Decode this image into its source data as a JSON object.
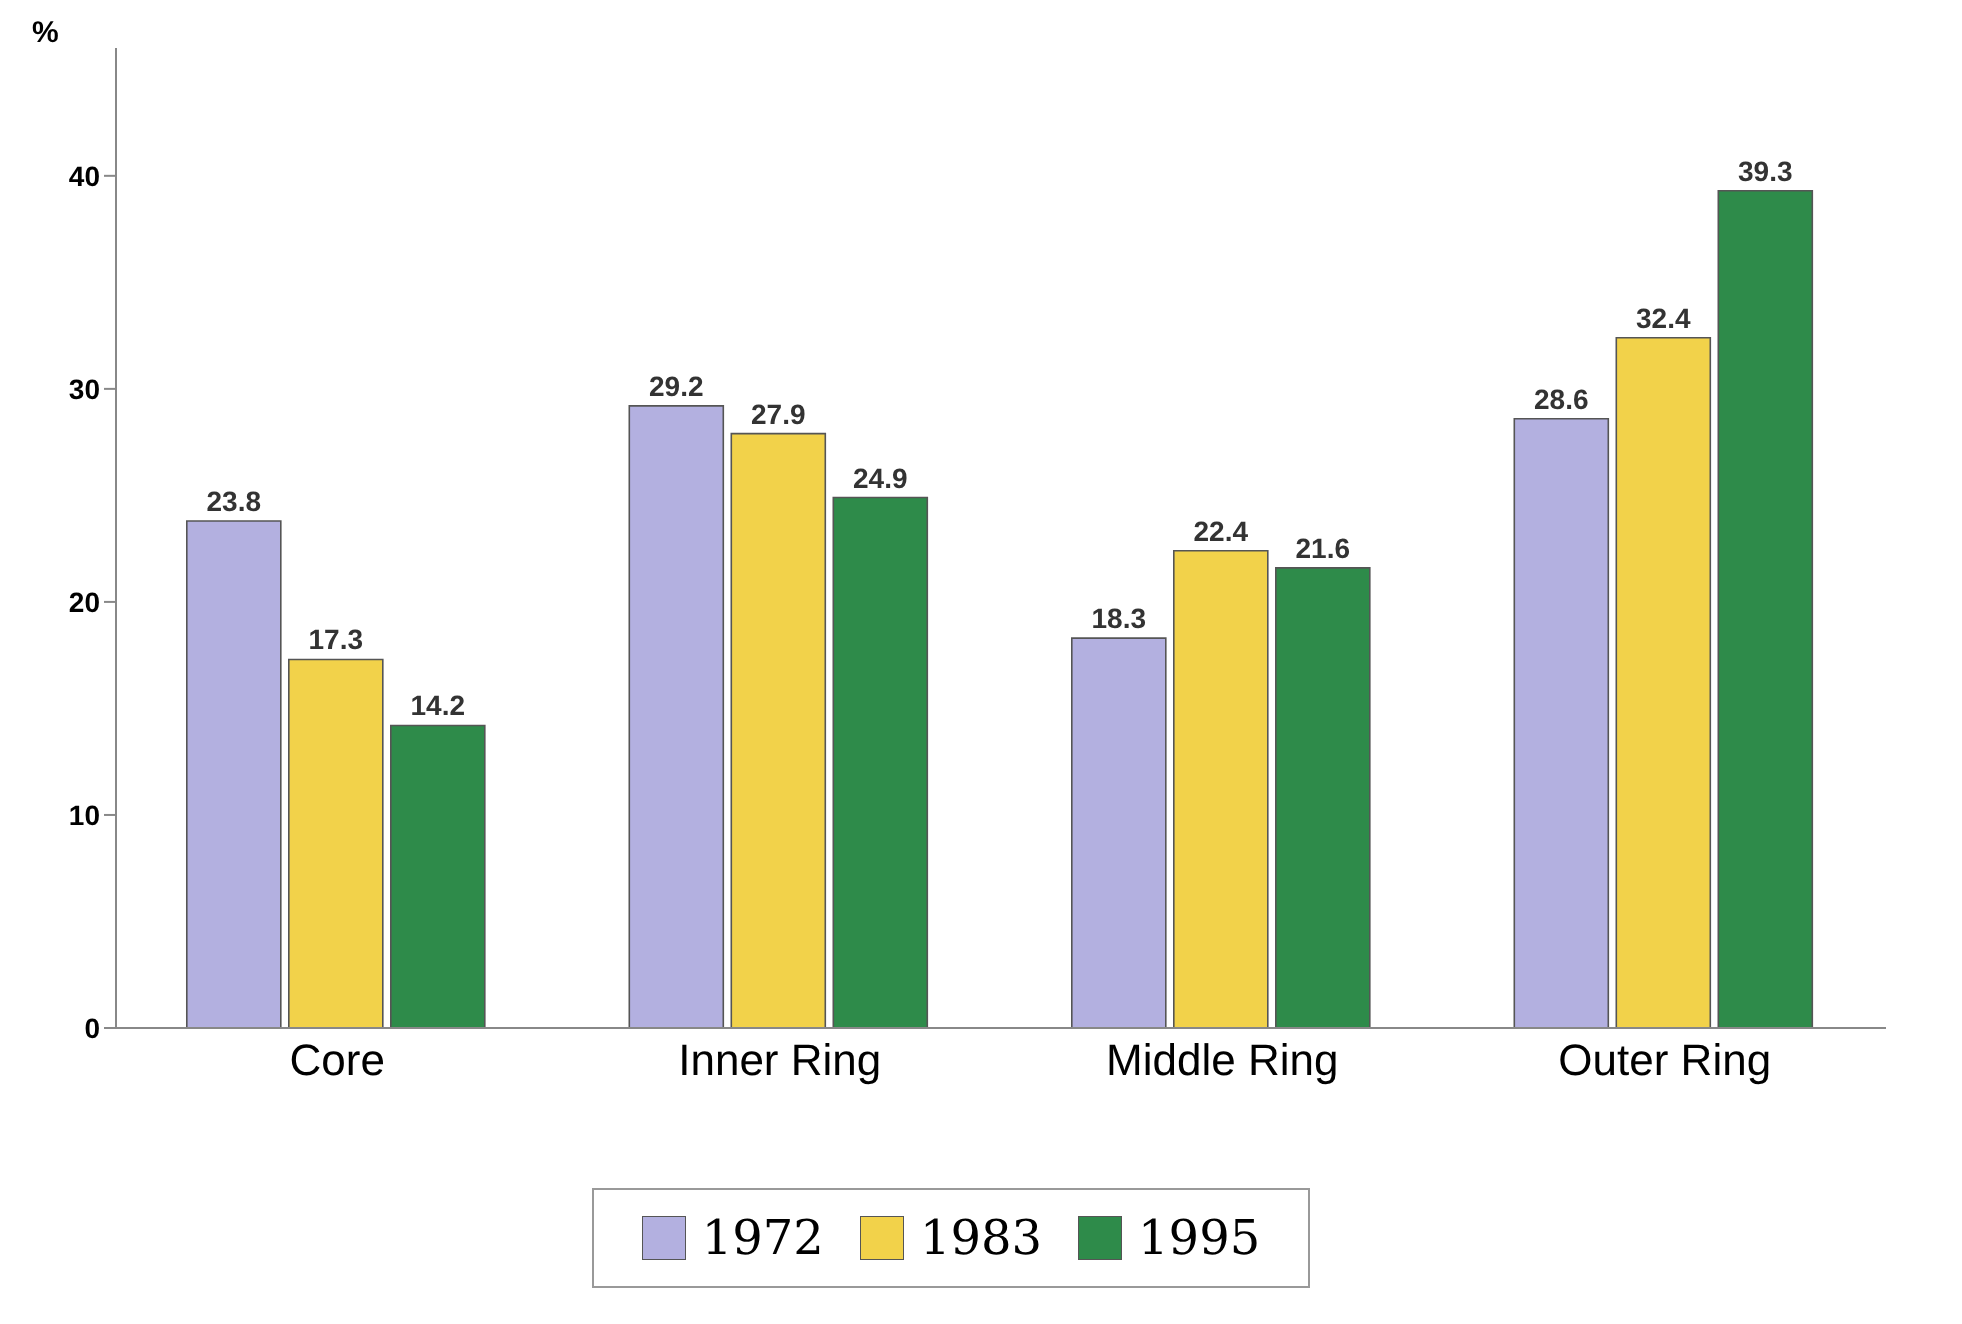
{
  "chart_data": {
    "type": "bar",
    "ylabel": "%",
    "categories": [
      "Core",
      "Inner Ring",
      "Middle Ring",
      "Outer Ring"
    ],
    "series": [
      {
        "name": "1972",
        "color": "#b3b0e0",
        "values": [
          23.8,
          29.2,
          18.3,
          28.6
        ]
      },
      {
        "name": "1983",
        "color": "#f2d24a",
        "values": [
          17.3,
          27.9,
          22.4,
          32.4
        ]
      },
      {
        "name": "1995",
        "color": "#2e8b4a",
        "values": [
          14.2,
          24.9,
          21.6,
          39.3
        ]
      }
    ],
    "ylim": [
      0,
      46
    ],
    "yticks": [
      0,
      10,
      20,
      30,
      40
    ],
    "data_labels": true,
    "legend": "bottom",
    "grid": false
  }
}
